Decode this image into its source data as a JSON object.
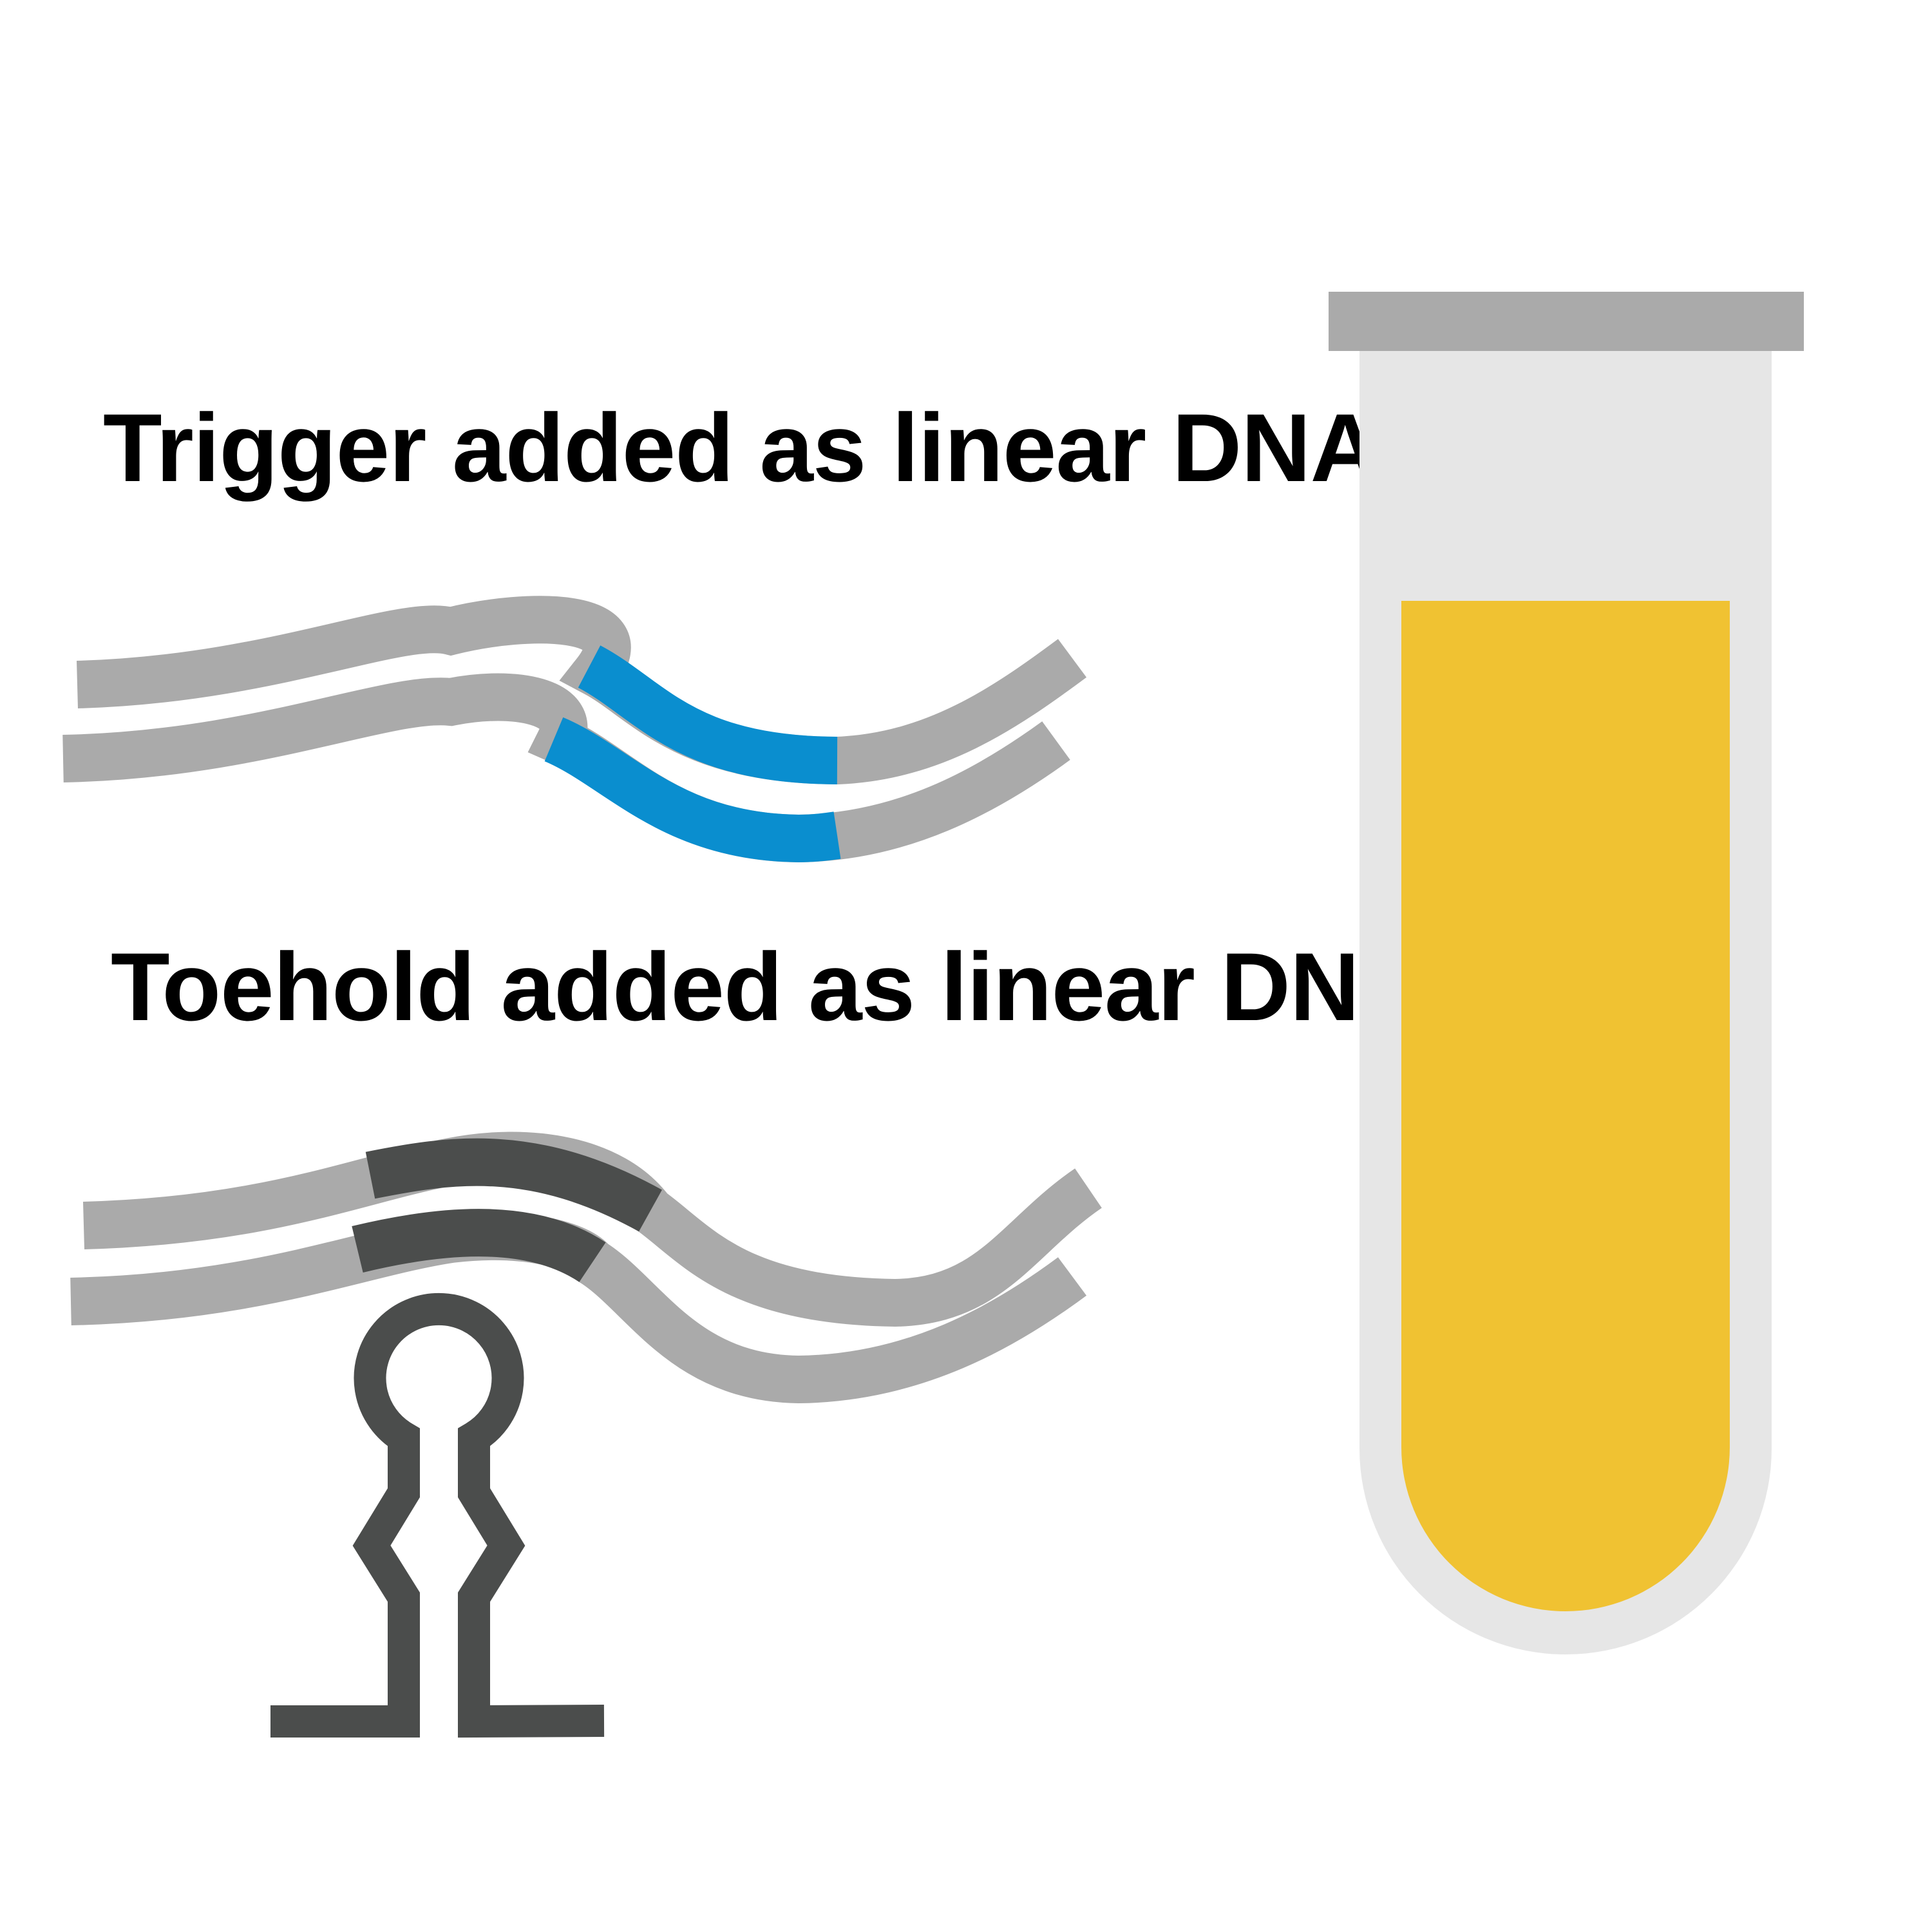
{
  "labels": {
    "trigger": "Trigger added as linear DNA",
    "toehold": "Toehold added as linear DNA"
  },
  "colors": {
    "strand_gray": "#aaaaaa",
    "trigger_blue": "#0a8ecf",
    "toehold_dark": "#4b4d4c",
    "hairpin": "#4b4d4c",
    "tube_body": "#e6e6e6",
    "tube_cap": "#aaaaaa",
    "liquid": "#f0c232"
  },
  "icons": {
    "trigger_dna": "double-stranded-dna-with-trigger-segment",
    "toehold_dna": "double-stranded-dna-with-toehold-segment",
    "hairpin": "rna-hairpin-icon",
    "tube": "test-tube-icon"
  }
}
